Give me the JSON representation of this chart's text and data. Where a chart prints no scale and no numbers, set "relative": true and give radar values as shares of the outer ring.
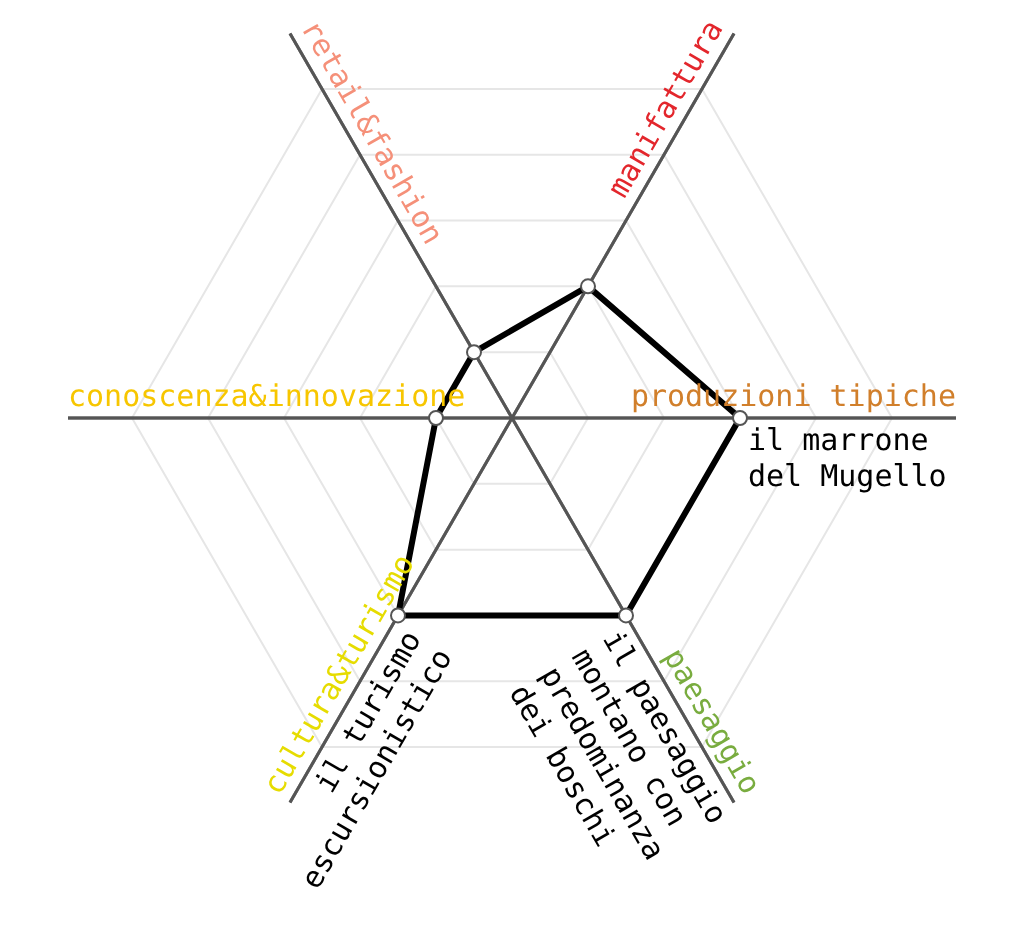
{
  "chart_data": {
    "type": "radar",
    "relative": true,
    "categories": [
      "manifattura",
      "produzioni tipiche",
      "paesaggio",
      "cultura&turismo",
      "conoscenza&innovazione",
      "retail&fashion"
    ],
    "colors": [
      "#e3262c",
      "#d17f2b",
      "#79ac3f",
      "#e6dc00",
      "#f7c600",
      "#f59079"
    ],
    "series": [
      {
        "color": "#000000",
        "values": [
          0.4,
          0.6,
          0.6,
          0.6,
          0.2,
          0.2
        ]
      }
    ],
    "marker": "circle",
    "grid": true,
    "annotations": [
      {
        "text": "il marrone\ndel Mugello",
        "x": "produzioni tipiche"
      },
      {
        "text": "il paesaggio\nmontano con\npredominanza\ndei boschi",
        "x": "paesaggio"
      },
      {
        "text": "il turismo\nescursionistico",
        "x": "cultura&turismo"
      }
    ]
  }
}
